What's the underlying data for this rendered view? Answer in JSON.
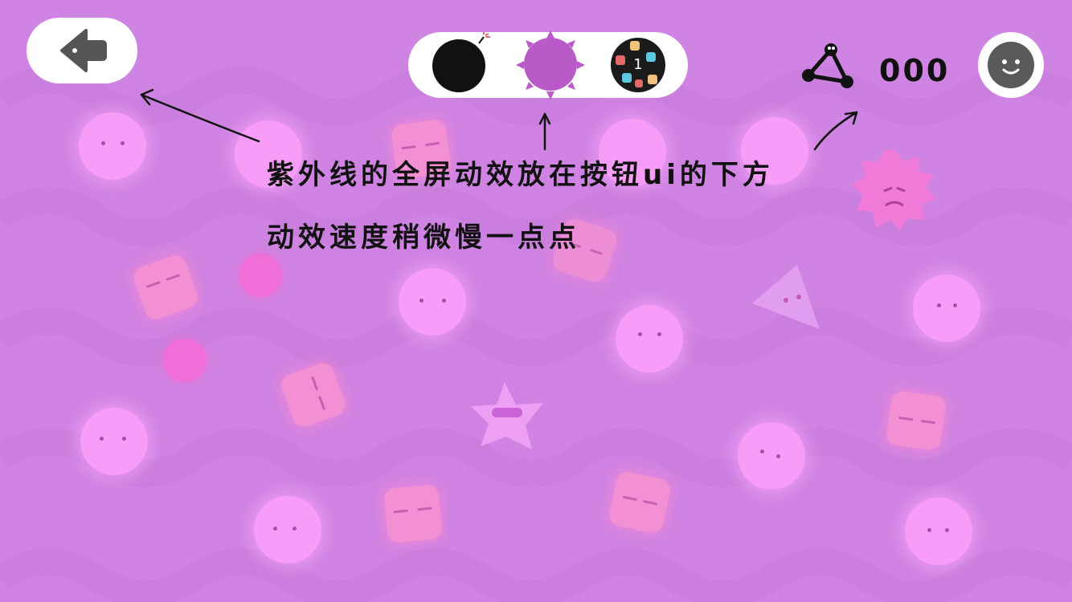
{
  "hud": {
    "score_value": "000",
    "selector": {
      "pattern_count": "1"
    }
  },
  "annotation": {
    "line1": "紫外线的全屏动效放在按钮ui的下方",
    "line2": "动效速度稍微慢一点点"
  },
  "colors": {
    "background": "#cf83e2",
    "glow_creature": "#f79cf7",
    "square_creature": "#f38fd3",
    "selected_color": "#b95ac8"
  },
  "icons": {
    "back": "arrow-left-icon",
    "score": "triangle-molecule-icon",
    "avatar": "smiley-face-icon",
    "bomb": "bomb-icon"
  }
}
